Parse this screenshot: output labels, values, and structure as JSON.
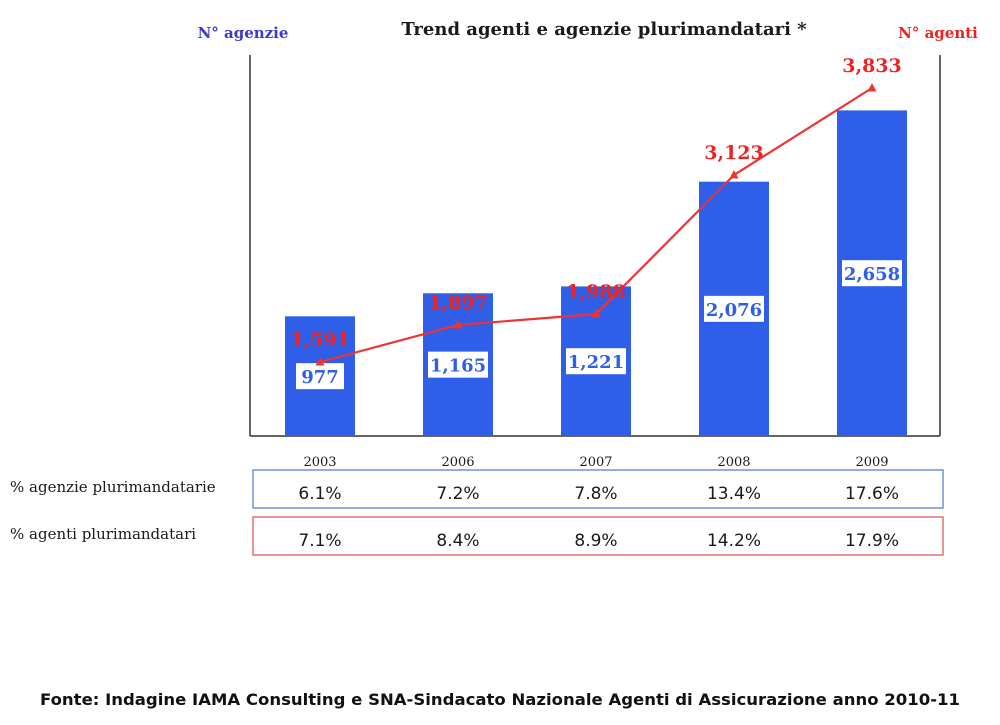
{
  "chart_data": {
    "type": "bar",
    "title": "Trend agenti e agenzie plurimandatari *",
    "left_axis_label": "N° agenzie",
    "right_axis_label": "N° agenti",
    "categories": [
      "2003",
      "2006",
      "2007",
      "2008",
      "2009"
    ],
    "series": [
      {
        "name": "N° agenzie",
        "type": "bar",
        "axis": "left",
        "values": [
          "977",
          "1,165",
          "1,221",
          "2,076",
          "2,658"
        ],
        "numeric": [
          977,
          1165,
          1221,
          2076,
          2658
        ],
        "color": "#2f5ee8"
      },
      {
        "name": "N° agenti",
        "type": "line",
        "axis": "right",
        "values": [
          "1,591",
          "1,897",
          "1,988",
          "3,123",
          "3,833"
        ],
        "numeric": [
          1591,
          1897,
          1988,
          3123,
          3833
        ],
        "color": "#ee3333"
      }
    ],
    "table_rows": [
      {
        "label": "% agenzie plurimandatarie",
        "values": [
          "6.1%",
          "7.2%",
          "7.8%",
          "13.4%",
          "17.6%"
        ],
        "border_color": "#5b7fd8"
      },
      {
        "label": "% agenti plurimandatari",
        "values": [
          "7.1%",
          "8.4%",
          "8.9%",
          "14.2%",
          "17.9%"
        ],
        "border_color": "#e05a5a"
      }
    ],
    "grid": false,
    "legend": "none"
  },
  "footer": {
    "source": "Fonte: Indagine IAMA Consulting e SNA-Sindacato Nazionale Agenti di Assicurazione anno 2010-11"
  }
}
